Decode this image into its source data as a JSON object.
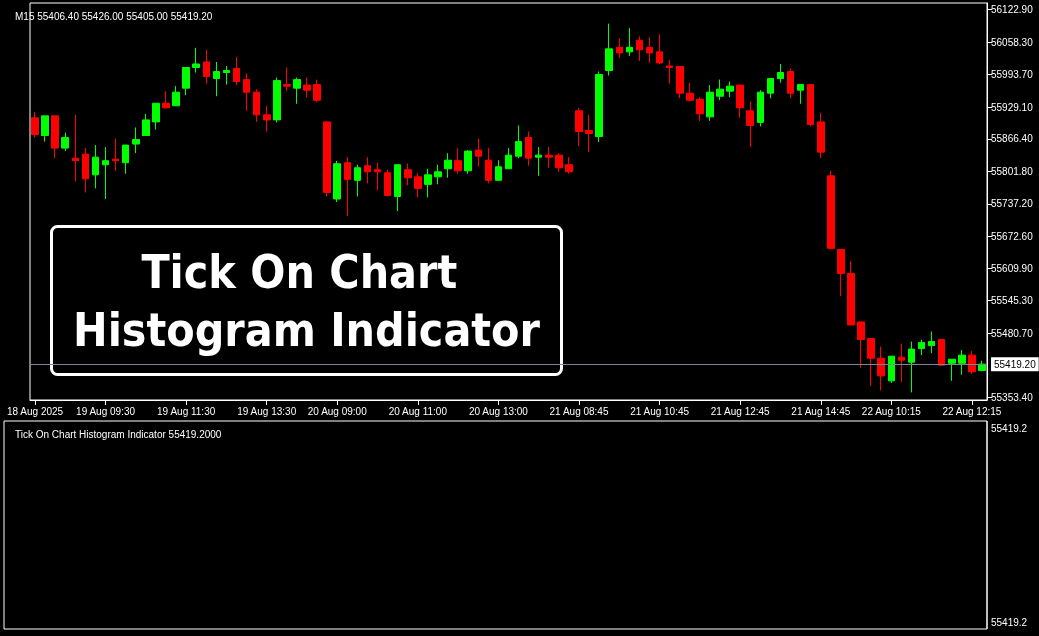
{
  "chart_data": [
    {
      "type": "candlestick",
      "title": "M15 55406.40 55426.00 55405.00 55419.20",
      "annotations": [
        "Tick On Chart Histogram Indicator"
      ],
      "categories": [
        "18 Aug 2025",
        null,
        null,
        null,
        null,
        null,
        null,
        "19 Aug 09:30",
        null,
        null,
        null,
        null,
        null,
        null,
        null,
        "19 Aug 11:30",
        null,
        null,
        null,
        null,
        null,
        null,
        null,
        "19 Aug 13:30",
        null,
        null,
        null,
        null,
        null,
        null,
        "20 Aug 09:00",
        null,
        null,
        null,
        null,
        null,
        null,
        null,
        "20 Aug 11:00",
        null,
        null,
        null,
        null,
        null,
        null,
        null,
        "20 Aug 13:00",
        null,
        null,
        null,
        null,
        null,
        null,
        null,
        "21 Aug 08:45",
        null,
        null,
        null,
        null,
        null,
        null,
        null,
        "21 Aug 10:45",
        null,
        null,
        null,
        null,
        null,
        null,
        null,
        "21 Aug 12:45",
        null,
        null,
        null,
        null,
        null,
        null,
        null,
        "21 Aug 14:45",
        null,
        null,
        null,
        null,
        null,
        null,
        "22 Aug 10:15",
        null,
        null,
        null,
        null,
        null,
        null,
        null,
        "22 Aug 12:15",
        null
      ],
      "ohlc": [
        [
          55908,
          55920,
          55869,
          55875
        ],
        [
          55873,
          55912,
          55861,
          55912
        ],
        [
          55912,
          55912,
          55828,
          55848
        ],
        [
          55848,
          55879,
          55842,
          55869
        ],
        [
          55828,
          55914,
          55782,
          55823
        ],
        [
          55836,
          55848,
          55760,
          55787
        ],
        [
          55795,
          55854,
          55768,
          55830
        ],
        [
          55815,
          55850,
          55747,
          55823
        ],
        [
          55826,
          55867,
          55803,
          55823
        ],
        [
          55819,
          55854,
          55797,
          55854
        ],
        [
          55856,
          55889,
          55838,
          55865
        ],
        [
          55873,
          55916,
          55873,
          55904
        ],
        [
          55900,
          55937,
          55885,
          55937
        ],
        [
          55937,
          55961,
          55926,
          55928
        ],
        [
          55932,
          55971,
          55932,
          55959
        ],
        [
          55967,
          56008,
          55953,
          56008
        ],
        [
          56008,
          56047,
          55998,
          56015
        ],
        [
          56019,
          56043,
          55976,
          55990
        ],
        [
          55986,
          56019,
          55951,
          56000
        ],
        [
          55998,
          56011,
          55974,
          56002
        ],
        [
          56006,
          56029,
          55973,
          55980
        ],
        [
          55984,
          55996,
          55922,
          55959
        ],
        [
          55959,
          55965,
          55900,
          55914
        ],
        [
          55914,
          55932,
          55881,
          55904
        ],
        [
          55904,
          55988,
          55899,
          55982
        ],
        [
          55974,
          56008,
          55961,
          55971
        ],
        [
          55967,
          55988,
          55936,
          55984
        ],
        [
          55973,
          55988,
          55949,
          55963
        ],
        [
          55974,
          55984,
          55939,
          55943
        ],
        [
          55900,
          55900,
          55752,
          55760
        ],
        [
          55747,
          55823,
          55741,
          55817
        ],
        [
          55819,
          55830,
          55713,
          55786
        ],
        [
          55784,
          55815,
          55752,
          55809
        ],
        [
          55813,
          55830,
          55778,
          55801
        ],
        [
          55805,
          55819,
          55764,
          55801
        ],
        [
          55799,
          55805,
          55752,
          55754
        ],
        [
          55752,
          55815,
          55723,
          55815
        ],
        [
          55805,
          55817,
          55774,
          55789
        ],
        [
          55791,
          55799,
          55750,
          55768
        ],
        [
          55776,
          55807,
          55750,
          55795
        ],
        [
          55791,
          55815,
          55776,
          55801
        ],
        [
          55807,
          55838,
          55789,
          55824
        ],
        [
          55823,
          55848,
          55797,
          55803
        ],
        [
          55803,
          55844,
          55797,
          55842
        ],
        [
          55844,
          55867,
          55811,
          55832
        ],
        [
          55824,
          55848,
          55778,
          55784
        ],
        [
          55784,
          55824,
          55784,
          55811
        ],
        [
          55807,
          55848,
          55807,
          55834
        ],
        [
          55832,
          55893,
          55828,
          55861
        ],
        [
          55869,
          55881,
          55813,
          55828
        ],
        [
          55830,
          55850,
          55793,
          55834
        ],
        [
          55834,
          55850,
          55809,
          55830
        ],
        [
          55834,
          55838,
          55801,
          55809
        ],
        [
          55815,
          55830,
          55797,
          55801
        ],
        [
          55922,
          55928,
          55852,
          55881
        ],
        [
          55883,
          55914,
          55840,
          55877
        ],
        [
          55871,
          56000,
          55860,
          55994
        ],
        [
          56002,
          56095,
          55992,
          56045
        ],
        [
          56048,
          56066,
          56027,
          56037
        ],
        [
          56039,
          56086,
          56031,
          56048
        ],
        [
          56062,
          56070,
          56021,
          56043
        ],
        [
          56048,
          56068,
          56017,
          56037
        ],
        [
          56039,
          56074,
          56015,
          56017
        ],
        [
          56011,
          56023,
          55976,
          56008
        ],
        [
          56010,
          56010,
          55947,
          55957
        ],
        [
          55957,
          55978,
          55941,
          55943
        ],
        [
          55945,
          55949,
          55902,
          55916
        ],
        [
          55910,
          55973,
          55902,
          55959
        ],
        [
          55951,
          55984,
          55943,
          55965
        ],
        [
          55961,
          55980,
          55949,
          55971
        ],
        [
          55973,
          55973,
          55908,
          55928
        ],
        [
          55922,
          55941,
          55850,
          55893
        ],
        [
          55899,
          55963,
          55891,
          55959
        ],
        [
          55957,
          55986,
          55947,
          55986
        ],
        [
          55986,
          56015,
          55978,
          55998
        ],
        [
          56000,
          56006,
          55947,
          55957
        ],
        [
          55963,
          55974,
          55936,
          55974
        ],
        [
          55974,
          55974,
          55891,
          55895
        ],
        [
          55900,
          55918,
          55828,
          55840
        ],
        [
          55793,
          55803,
          55647,
          55649
        ],
        [
          55647,
          55647,
          55554,
          55599
        ],
        [
          55599,
          55624,
          55497,
          55497
        ],
        [
          55503,
          55503,
          55412,
          55468
        ],
        [
          55470,
          55470,
          55376,
          55431
        ],
        [
          55431,
          55454,
          55367,
          55396
        ],
        [
          55386,
          55435,
          55382,
          55435
        ],
        [
          55433,
          55460,
          55384,
          55427
        ],
        [
          55423,
          55464,
          55363,
          55449
        ],
        [
          55450,
          55468,
          55437,
          55462
        ],
        [
          55456,
          55484,
          55441,
          55464
        ],
        [
          55468,
          55468,
          55417,
          55417
        ],
        [
          55421,
          55429,
          55386,
          55429
        ],
        [
          55421,
          55447,
          55398,
          55437
        ],
        [
          55437,
          55445,
          55400,
          55404
        ],
        [
          55406.4,
          55426,
          55405,
          55419.2
        ]
      ],
      "colors": [
        "#ff0000",
        "#00ff00",
        "#ff0000",
        "#00ff00",
        "#ff0000",
        "#ff0000",
        "#00ff00",
        "#00ff00",
        "#ff0000",
        "#00ff00",
        "#00ff00",
        "#00ff00",
        "#00ff00",
        "#ff0000",
        "#00ff00",
        "#00ff00",
        "#00ff00",
        "#ff0000",
        "#00ff00",
        "#00ff00",
        "#ff0000",
        "#ff0000",
        "#ff0000",
        "#ff0000",
        "#00ff00",
        "#ff0000",
        "#00ff00",
        "#ff0000",
        "#ff0000",
        "#ff0000",
        "#00ff00",
        "#ff0000",
        "#00ff00",
        "#ff0000",
        "#ff0000",
        "#ff0000",
        "#00ff00",
        "#ff0000",
        "#ff0000",
        "#00ff00",
        "#00ff00",
        "#00ff00",
        "#ff0000",
        "#00ff00",
        "#ff0000",
        "#ff0000",
        "#00ff00",
        "#00ff00",
        "#00ff00",
        "#ff0000",
        "#00ff00",
        "#ff0000",
        "#ff0000",
        "#ff0000",
        "#ff0000",
        "#ff0000",
        "#00ff00",
        "#00ff00",
        "#ff0000",
        "#00ff00",
        "#ff0000",
        "#ff0000",
        "#ff0000",
        "#ff0000",
        "#ff0000",
        "#ff0000",
        "#ff0000",
        "#00ff00",
        "#00ff00",
        "#00ff00",
        "#ff0000",
        "#ff0000",
        "#00ff00",
        "#00ff00",
        "#00ff00",
        "#ff0000",
        "#00ff00",
        "#ff0000",
        "#ff0000",
        "#ff0000",
        "#ff0000",
        "#ff0000",
        "#ff0000",
        "#ff0000",
        "#ff0000",
        "#00ff00",
        "#ff0000",
        "#00ff00",
        "#00ff00",
        "#00ff00",
        "#ff0000",
        "#00ff00",
        "#00ff00",
        "#ff0000",
        "#00ff00"
      ],
      "ylim": [
        55348,
        56136
      ],
      "yticks": [
        {
          "value": 55353.4,
          "label": "55353.40"
        },
        {
          "value": 55480.7,
          "label": "55480.70"
        },
        {
          "value": 55545.3,
          "label": "55545.30"
        },
        {
          "value": 55609.9,
          "label": "55609.90"
        },
        {
          "value": 55672.6,
          "label": "55672.60"
        },
        {
          "value": 55737.2,
          "label": "55737.20"
        },
        {
          "value": 55801.8,
          "label": "55801.80"
        },
        {
          "value": 55866.4,
          "label": "55866.40"
        },
        {
          "value": 55929.1,
          "label": "55929.10"
        },
        {
          "value": 55993.7,
          "label": "55993.70"
        },
        {
          "value": 56058.3,
          "label": "56058.30"
        },
        {
          "value": 56122.9,
          "label": "56122.90"
        }
      ],
      "ref_lines": [
        {
          "axis": "y",
          "value": 55419.2,
          "label": "55419.20",
          "color": "#778899"
        }
      ]
    },
    {
      "type": "other",
      "title": "Tick On Chart Histogram Indicator 55419.2000",
      "annotations": [
        "55419.2",
        "55419.2"
      ]
    }
  ]
}
